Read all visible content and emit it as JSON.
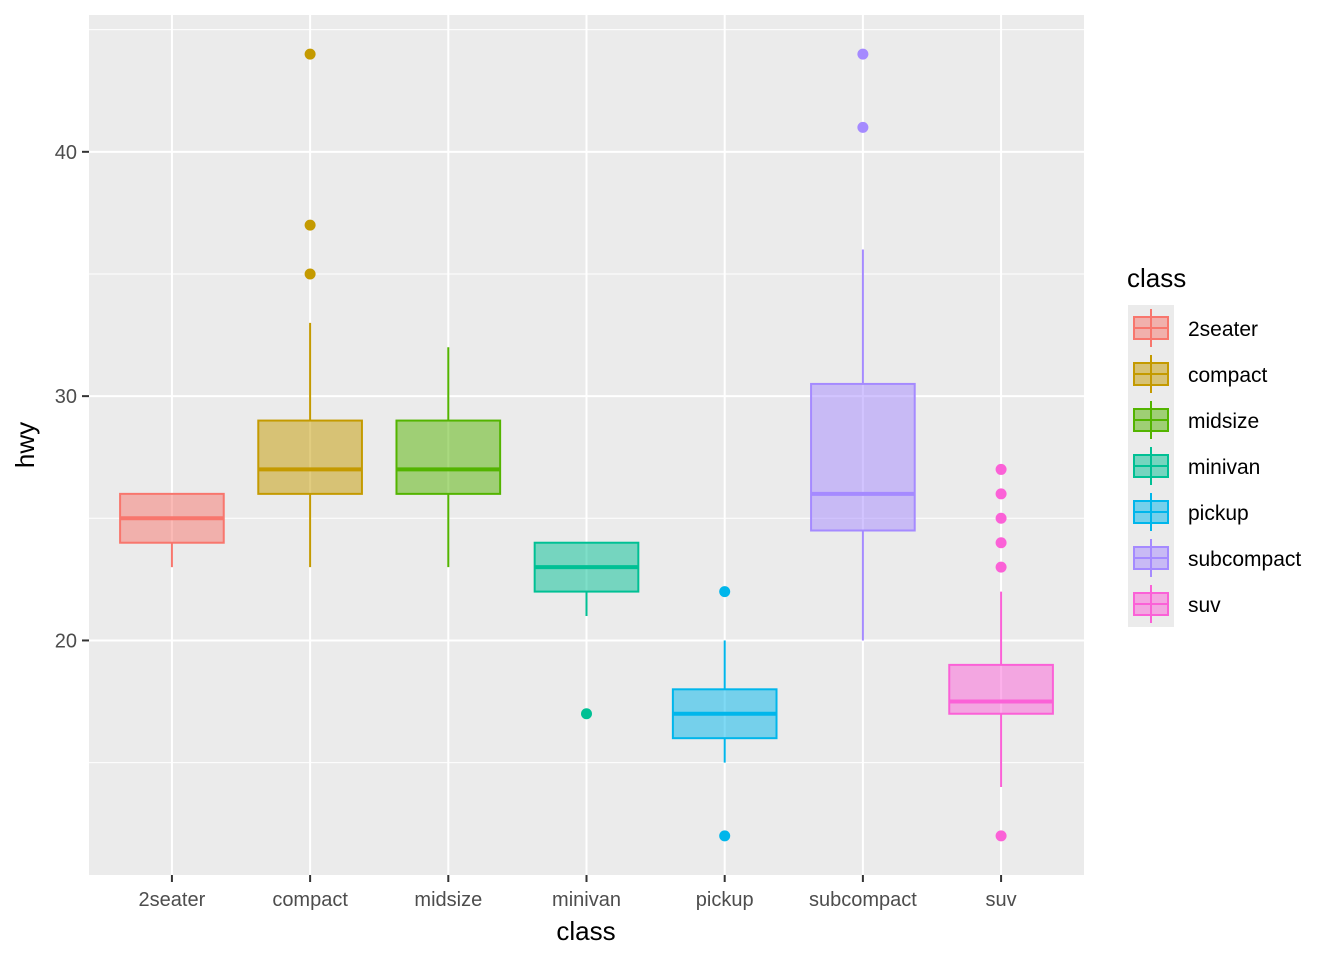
{
  "chart_data": {
    "type": "box",
    "xlabel": "class",
    "ylabel": "hwy",
    "ylim": [
      10.4,
      45.6
    ],
    "y_ticks": [
      20,
      30,
      40
    ],
    "y_tick_labels": [
      "20",
      "30",
      "40"
    ],
    "grid": true,
    "legend": {
      "title": "class",
      "position": "right"
    },
    "categories": [
      "2seater",
      "compact",
      "midsize",
      "minivan",
      "pickup",
      "subcompact",
      "suv"
    ],
    "series": [
      {
        "name": "2seater",
        "color": "#F8766D",
        "whisker_low": 23,
        "q1": 24,
        "median": 25,
        "q3": 26,
        "whisker_high": 26,
        "outliers": []
      },
      {
        "name": "compact",
        "color": "#C49A00",
        "whisker_low": 23,
        "q1": 26,
        "median": 27,
        "q3": 29,
        "whisker_high": 33,
        "outliers": [
          35,
          37,
          44
        ]
      },
      {
        "name": "midsize",
        "color": "#53B400",
        "whisker_low": 23,
        "q1": 26,
        "median": 27,
        "q3": 29,
        "whisker_high": 32,
        "outliers": []
      },
      {
        "name": "minivan",
        "color": "#00C094",
        "whisker_low": 21,
        "q1": 22,
        "median": 23,
        "q3": 24,
        "whisker_high": 24,
        "outliers": [
          17
        ]
      },
      {
        "name": "pickup",
        "color": "#00B6EB",
        "whisker_low": 15,
        "q1": 16,
        "median": 17,
        "q3": 18,
        "whisker_high": 20,
        "outliers": [
          12,
          22
        ]
      },
      {
        "name": "subcompact",
        "color": "#A58AFF",
        "whisker_low": 20,
        "q1": 24.5,
        "median": 26,
        "q3": 30.5,
        "whisker_high": 36,
        "outliers": [
          41,
          44
        ]
      },
      {
        "name": "suv",
        "color": "#FB61D7",
        "whisker_low": 14,
        "q1": 17,
        "median": 17.5,
        "q3": 19,
        "whisker_high": 22,
        "outliers": [
          12,
          23,
          24,
          25,
          26,
          27
        ]
      }
    ]
  }
}
